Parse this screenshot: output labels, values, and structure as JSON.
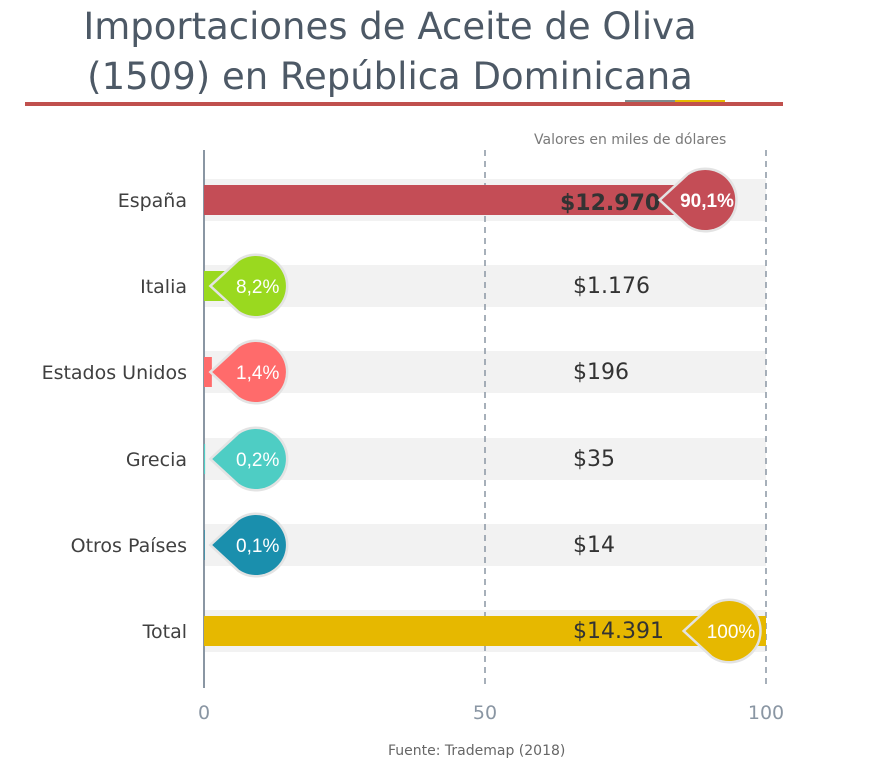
{
  "title": {
    "line1": "Importaciones de Aceite de Oliva",
    "line2": "(1509) en República Dominicana"
  },
  "units_note": "Valores en miles de dólares",
  "source": "Fuente: Trademap (2018)",
  "chart_data": {
    "type": "bar",
    "orientation": "horizontal",
    "categories": [
      "España",
      "Italia",
      "Estados Unidos",
      "Grecia",
      "Otros Países",
      "Total"
    ],
    "values": [
      90.1,
      8.2,
      1.4,
      0.2,
      0.1,
      100
    ],
    "percent_labels": [
      "90,1%",
      "8,2%",
      "1,4%",
      "0,2%",
      "0,1%",
      "100%"
    ],
    "value_labels": [
      "$12.970",
      "$1.176",
      "$196",
      "$35",
      "$14",
      "$14.391"
    ],
    "colors": [
      "#c44d56",
      "#9ad91f",
      "#ff6b6b",
      "#4ecdc4",
      "#1a8fad",
      "#e6b800"
    ],
    "xlim": [
      0,
      100
    ],
    "xticks": [
      "0",
      "50",
      "100"
    ],
    "grid": "dashed at 50 and 100"
  }
}
